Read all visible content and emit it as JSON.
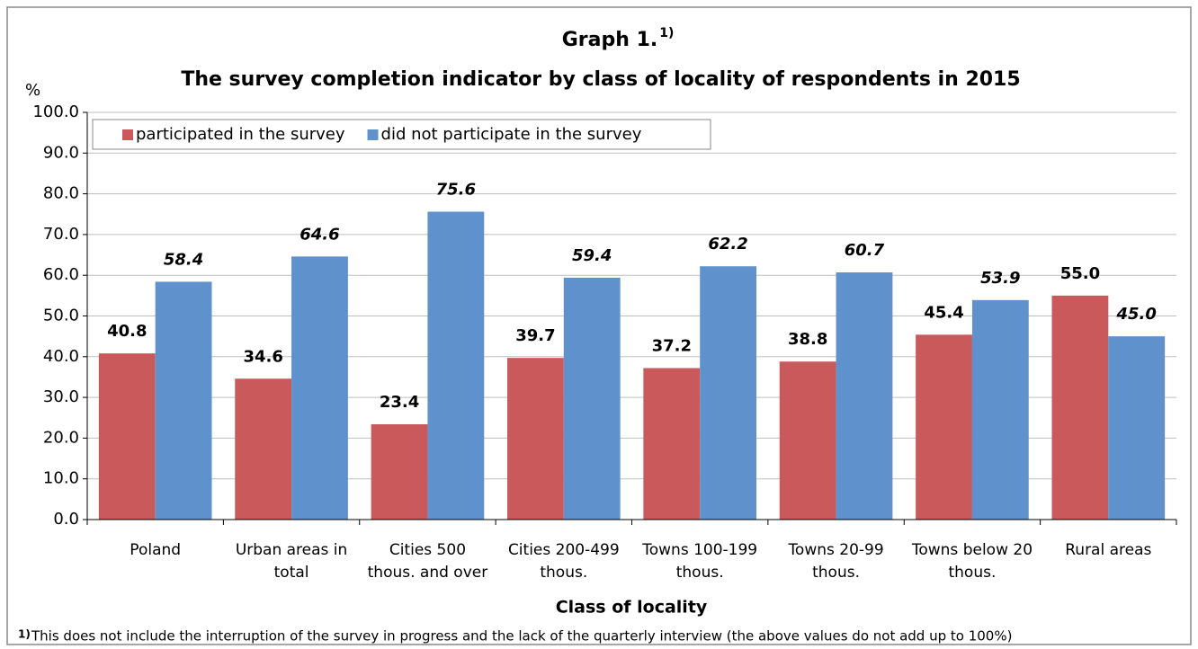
{
  "chart_data": {
    "type": "bar",
    "title": "Graph 1.",
    "title_superscript": "1)",
    "subtitle": "The survey completion indicator by class of locality of respondents in 2015",
    "y_label": "%",
    "x_label": "Class of locality",
    "categories": [
      "Poland",
      "Urban areas in total",
      "Cities 500 thous. and over",
      "Cities 200-499 thous.",
      "Towns 100-199 thous.",
      "Towns 20-99 thous.",
      "Towns below 20 thous.",
      "Rural areas"
    ],
    "series": [
      {
        "name": "participated in the survey",
        "color": "#c9595a",
        "values": [
          40.8,
          34.6,
          23.4,
          39.7,
          37.2,
          38.8,
          45.4,
          55.0
        ],
        "value_labels": [
          "40.8",
          "34.6",
          "23.4",
          "39.7",
          "37.2",
          "38.8",
          "45.4",
          "55.0"
        ]
      },
      {
        "name": "did not participate in the survey",
        "color": "#5f91cd",
        "values": [
          58.4,
          64.6,
          75.6,
          59.4,
          62.2,
          60.7,
          53.9,
          45.0
        ],
        "value_labels": [
          "58.4",
          "64.6",
          "75.6",
          "59.4",
          "62.2",
          "60.7",
          "53.9",
          "45.0"
        ]
      }
    ],
    "ylim": [
      0,
      100
    ],
    "yticks": [
      {
        "value": 0,
        "label": "0.0"
      },
      {
        "value": 10,
        "label": "10.0"
      },
      {
        "value": 20,
        "label": "20.0"
      },
      {
        "value": 30,
        "label": "30.0"
      },
      {
        "value": 40,
        "label": "40.0"
      },
      {
        "value": 50,
        "label": "50.0"
      },
      {
        "value": 60,
        "label": "60.0"
      },
      {
        "value": 70,
        "label": "70.0"
      },
      {
        "value": 80,
        "label": "80.0"
      },
      {
        "value": 90,
        "label": "90.0"
      },
      {
        "value": 100,
        "label": "100.0"
      }
    ],
    "grid": true,
    "legend": "upper left",
    "footnote_marker": "1)",
    "footnote": "This does not include the interruption of  the survey in progress and the lack of the quarterly interview (the above values do not add up to 100%)"
  }
}
